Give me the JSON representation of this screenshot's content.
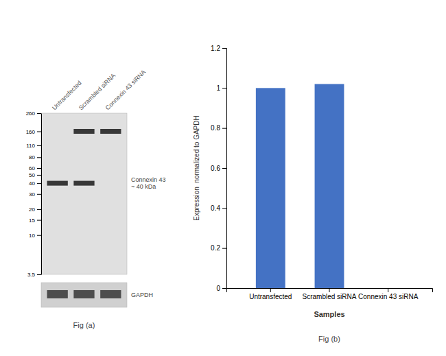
{
  "chart_data": [
    {
      "type": "blot",
      "title": "Fig (a)",
      "categories": [
        "Untransfected",
        "Scrambled siRNA",
        "Connexin 43 siRNA"
      ],
      "log": "y",
      "ylim": [
        3.5,
        260
      ],
      "yticks": [
        260,
        160,
        110,
        80,
        60,
        50,
        40,
        30,
        20,
        15,
        10,
        3.5
      ],
      "series": [
        {
          "name": "Connexin 43\n~ 40 kDa",
          "values": [
            40,
            40,
            null
          ]
        },
        {
          "values": [
            null,
            160,
            160
          ]
        }
      ],
      "annotations": [
        "GAPDH"
      ]
    },
    {
      "type": "bar",
      "title": "Fig (b)",
      "categories": [
        "Untransfected",
        "Scrambled siRNA",
        "Connexin 43 siRNA"
      ],
      "values": [
        1.0,
        1.02,
        0.0
      ],
      "color": "#4472C4",
      "xlabel": "Samples",
      "ylabel": "Expression  normalized to GAPDH",
      "ylim": [
        0,
        1.2
      ],
      "yticks": [
        0,
        0.2,
        0.4,
        0.6,
        0.8,
        1,
        1.2
      ],
      "grid": false
    }
  ]
}
